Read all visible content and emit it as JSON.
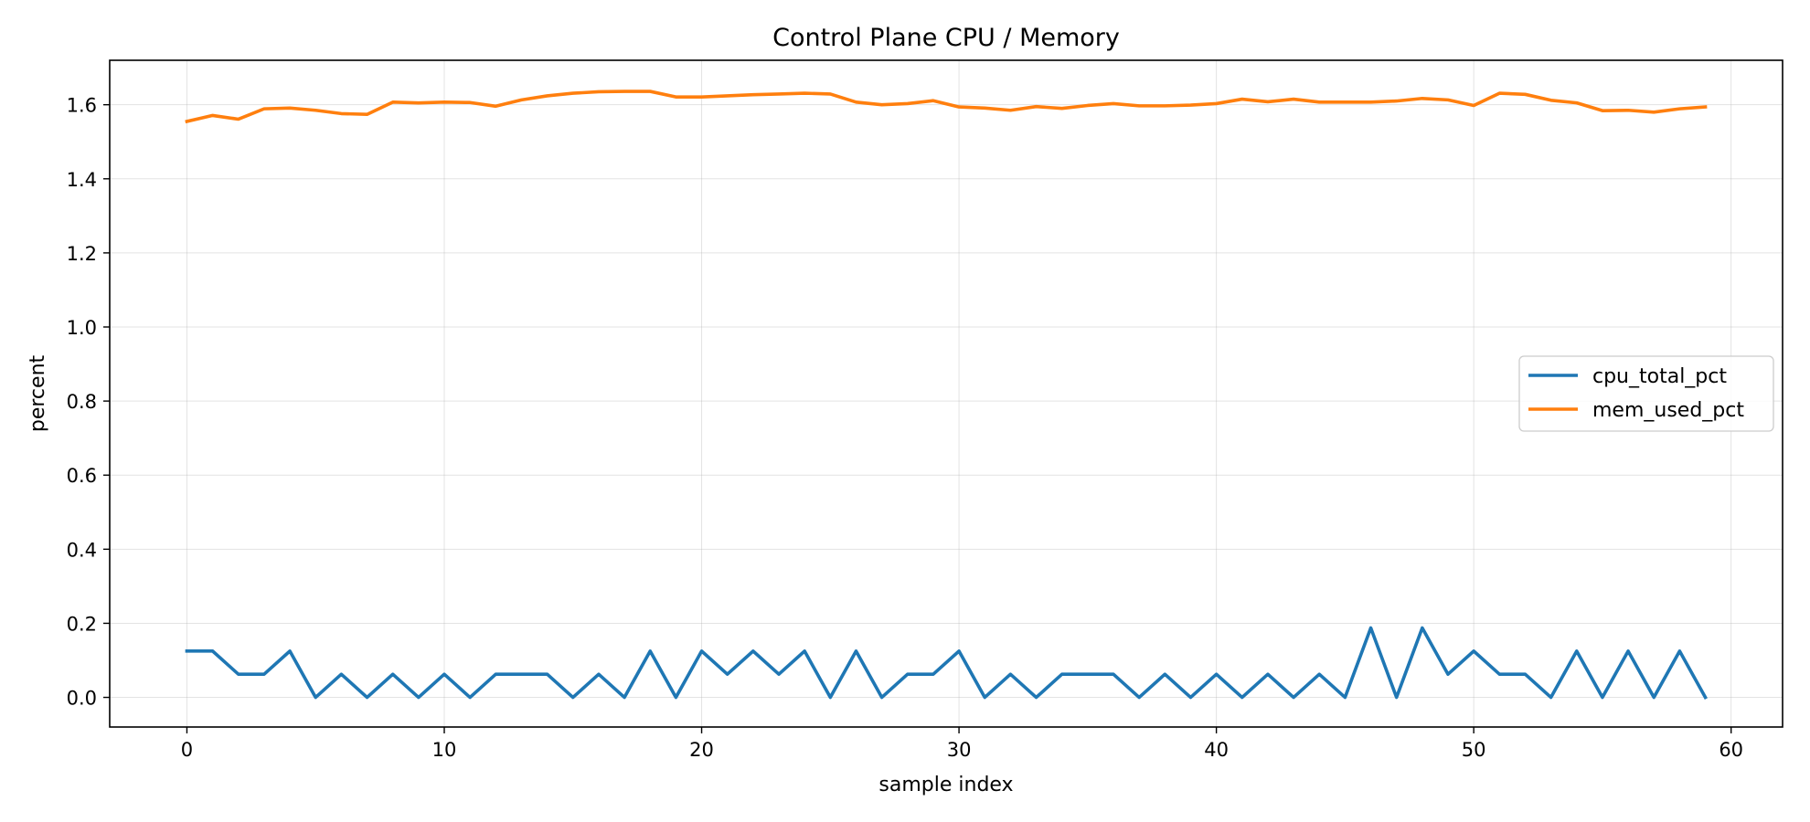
{
  "chart_data": {
    "type": "line",
    "title": "Control Plane CPU / Memory",
    "xlabel": "sample index",
    "ylabel": "percent",
    "xlim": [
      -3,
      62
    ],
    "ylim": [
      -0.08,
      1.72
    ],
    "x_ticks": [
      0,
      10,
      20,
      30,
      40,
      50,
      60
    ],
    "y_ticks": [
      0.0,
      0.2,
      0.4,
      0.6,
      0.8,
      1.0,
      1.2,
      1.4,
      1.6
    ],
    "grid": true,
    "legend_position": "center-right",
    "x": [
      0,
      1,
      2,
      3,
      4,
      5,
      6,
      7,
      8,
      9,
      10,
      11,
      12,
      13,
      14,
      15,
      16,
      17,
      18,
      19,
      20,
      21,
      22,
      23,
      24,
      25,
      26,
      27,
      28,
      29,
      30,
      31,
      32,
      33,
      34,
      35,
      36,
      37,
      38,
      39,
      40,
      41,
      42,
      43,
      44,
      45,
      46,
      47,
      48,
      49,
      50,
      51,
      52,
      53,
      54,
      55,
      56,
      57,
      58,
      59
    ],
    "series": [
      {
        "name": "cpu_total_pct",
        "color": "#1f77b4",
        "values": [
          0.125,
          0.125,
          0.0625,
          0.0625,
          0.125,
          0.0,
          0.0625,
          0.0,
          0.0625,
          0.0,
          0.0625,
          0.0,
          0.0625,
          0.0625,
          0.0625,
          0.0,
          0.0625,
          0.0,
          0.125,
          0.0,
          0.125,
          0.0625,
          0.125,
          0.0625,
          0.125,
          0.0,
          0.125,
          0.0,
          0.0625,
          0.0625,
          0.125,
          0.0,
          0.0625,
          0.0,
          0.0625,
          0.0625,
          0.0625,
          0.0,
          0.0625,
          0.0,
          0.0625,
          0.0,
          0.0625,
          0.0,
          0.0625,
          0.0,
          0.1875,
          0.0,
          0.1875,
          0.0625,
          0.125,
          0.0625,
          0.0625,
          0.0,
          0.125,
          0.0,
          0.125,
          0.0,
          0.125,
          0.0
        ]
      },
      {
        "name": "mem_used_pct",
        "color": "#ff7f0e",
        "values": [
          1.555,
          1.571,
          1.561,
          1.589,
          1.591,
          1.585,
          1.576,
          1.574,
          1.607,
          1.605,
          1.607,
          1.606,
          1.596,
          1.613,
          1.624,
          1.631,
          1.635,
          1.636,
          1.636,
          1.621,
          1.621,
          1.624,
          1.627,
          1.629,
          1.631,
          1.629,
          1.607,
          1.6,
          1.603,
          1.611,
          1.594,
          1.591,
          1.585,
          1.595,
          1.59,
          1.598,
          1.603,
          1.597,
          1.597,
          1.599,
          1.603,
          1.615,
          1.608,
          1.615,
          1.607,
          1.607,
          1.607,
          1.61,
          1.617,
          1.613,
          1.598,
          1.631,
          1.628,
          1.612,
          1.605,
          1.584,
          1.585,
          1.58,
          1.589,
          1.594
        ]
      }
    ]
  }
}
